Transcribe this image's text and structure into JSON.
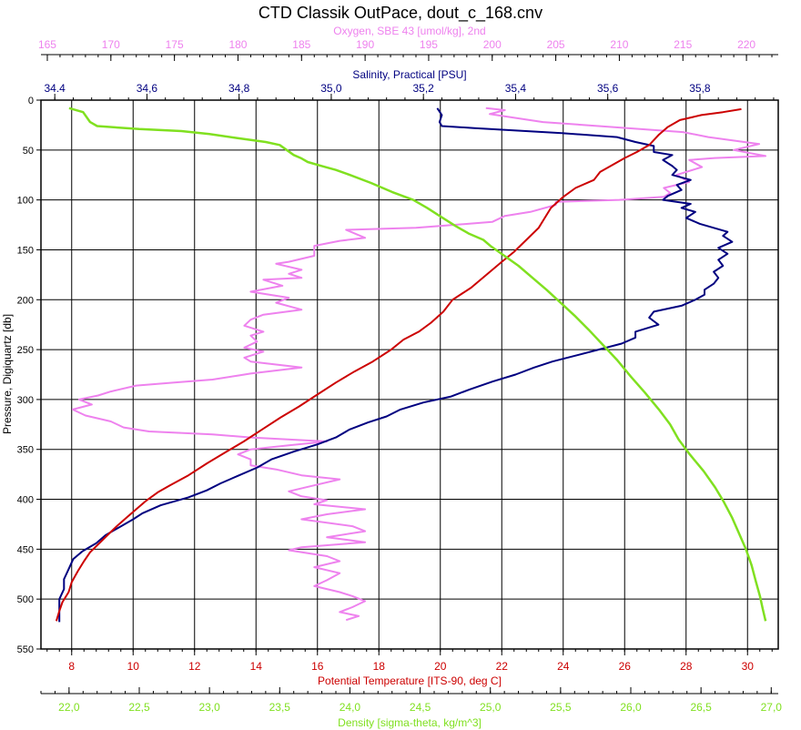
{
  "chart_data": {
    "type": "line",
    "title": "CTD Classik OutPace, dout_c_168.cnv",
    "ylabel": "Pressure, Digiquartz [db]",
    "ylim": [
      0,
      550
    ],
    "y_ticks": [
      0,
      50,
      100,
      150,
      200,
      250,
      300,
      350,
      400,
      450,
      500,
      550
    ],
    "y_inverted": true,
    "grid": true,
    "axes": {
      "oxygen": {
        "label": "Oxygen, SBE 43 [umol/kg], 2nd",
        "color": "#ee82ee",
        "range": [
          164.5,
          222.5
        ],
        "ticks": [
          165,
          170,
          175,
          180,
          185,
          190,
          195,
          200,
          205,
          210,
          215,
          220
        ]
      },
      "salinity": {
        "label": "Salinity, Practical [PSU]",
        "color": "#000080",
        "range": [
          34.37,
          35.97
        ],
        "ticks": [
          34.4,
          34.6,
          34.8,
          35.0,
          35.2,
          35.4,
          35.6,
          35.8
        ],
        "tick_labels": [
          "34.4",
          "34,6",
          "34,8",
          "35,0",
          "35,2",
          "35,4",
          "35,6",
          "35,8"
        ]
      },
      "temperature": {
        "label": "Potential Temperature [ITS-90, deg C]",
        "color": "#cc0000",
        "range": [
          7,
          31
        ],
        "ticks": [
          8,
          10,
          12,
          14,
          16,
          18,
          20,
          22,
          24,
          26,
          28,
          30
        ]
      },
      "density": {
        "label": "Density [sigma-theta, kg/m^3]",
        "color": "#80e020",
        "range": [
          21.8,
          27.05
        ],
        "ticks": [
          22.0,
          22.5,
          23.0,
          23.5,
          24.0,
          24.5,
          25.0,
          25.5,
          26.0,
          26.5,
          27.0
        ],
        "tick_labels": [
          "22,0",
          "22,5",
          "23,0",
          "23,5",
          "24,0",
          "24,5",
          "25,0",
          "25,5",
          "26,0",
          "26,5",
          "27,0"
        ]
      }
    },
    "series": [
      {
        "axis": "oxygen",
        "color": "#ee82ee",
        "points": [
          [
            199.5,
            8
          ],
          [
            201,
            10
          ],
          [
            199.8,
            14
          ],
          [
            204,
            22
          ],
          [
            215,
            32
          ],
          [
            217,
            37
          ],
          [
            221,
            44
          ],
          [
            219,
            50
          ],
          [
            221.5,
            56
          ],
          [
            217.5,
            58
          ],
          [
            215.5,
            60
          ],
          [
            216.5,
            67
          ],
          [
            214.5,
            75
          ],
          [
            215.5,
            82
          ],
          [
            213.5,
            88
          ],
          [
            214,
            93
          ],
          [
            213.5,
            97
          ],
          [
            210,
            100
          ],
          [
            205,
            102
          ],
          [
            205,
            105
          ],
          [
            203,
            112
          ],
          [
            201,
            116
          ],
          [
            200,
            122
          ],
          [
            196,
            126
          ],
          [
            194,
            128
          ],
          [
            188.5,
            130
          ],
          [
            190,
            138
          ],
          [
            188,
            141
          ],
          [
            186,
            146
          ],
          [
            186,
            156
          ],
          [
            184,
            162
          ],
          [
            183,
            164
          ],
          [
            185,
            170
          ],
          [
            184,
            174
          ],
          [
            185,
            178
          ],
          [
            182,
            180
          ],
          [
            183.5,
            186
          ],
          [
            181,
            192
          ],
          [
            184,
            198
          ],
          [
            183,
            203
          ],
          [
            185,
            210
          ],
          [
            182,
            215
          ],
          [
            181,
            220
          ],
          [
            180.5,
            226
          ],
          [
            182,
            232
          ],
          [
            181,
            236
          ],
          [
            181.5,
            242
          ],
          [
            180.5,
            248
          ],
          [
            182,
            252
          ],
          [
            180.5,
            258
          ],
          [
            181,
            262
          ],
          [
            185,
            268
          ],
          [
            181,
            274
          ],
          [
            180,
            276
          ],
          [
            178,
            280
          ],
          [
            175,
            283
          ],
          [
            172,
            286
          ],
          [
            170,
            292
          ],
          [
            169,
            296
          ],
          [
            167.5,
            300
          ],
          [
            168.5,
            305
          ],
          [
            167,
            310
          ],
          [
            168,
            316
          ],
          [
            170,
            322
          ],
          [
            171,
            328
          ],
          [
            173,
            332
          ],
          [
            178,
            335
          ],
          [
            181,
            338
          ],
          [
            187,
            342
          ],
          [
            184,
            346
          ],
          [
            181,
            350
          ],
          [
            180,
            355
          ],
          [
            181,
            360
          ],
          [
            181,
            366
          ],
          [
            183,
            370
          ],
          [
            185,
            376
          ],
          [
            188,
            380
          ],
          [
            186,
            386
          ],
          [
            184,
            392
          ],
          [
            185,
            397
          ],
          [
            187,
            401
          ],
          [
            186,
            405
          ],
          [
            190,
            410
          ],
          [
            187,
            415
          ],
          [
            185,
            420
          ],
          [
            189,
            427
          ],
          [
            190,
            432
          ],
          [
            187,
            438
          ],
          [
            190,
            443
          ],
          [
            185,
            448
          ],
          [
            184,
            451
          ],
          [
            187,
            457
          ],
          [
            188,
            462
          ],
          [
            186,
            468
          ],
          [
            188,
            474
          ],
          [
            187,
            481
          ],
          [
            186,
            487
          ],
          [
            188,
            493
          ],
          [
            189,
            497
          ],
          [
            190,
            502
          ],
          [
            189,
            508
          ],
          [
            188,
            513
          ],
          [
            189.5,
            517
          ],
          [
            188.5,
            521
          ]
        ]
      },
      {
        "axis": "salinity",
        "color": "#000080",
        "points": [
          [
            35.23,
            8
          ],
          [
            35.24,
            15
          ],
          [
            35.235,
            22
          ],
          [
            35.24,
            26
          ],
          [
            35.31,
            28
          ],
          [
            35.5,
            33
          ],
          [
            35.62,
            37
          ],
          [
            35.66,
            42
          ],
          [
            35.7,
            46
          ],
          [
            35.7,
            52
          ],
          [
            35.74,
            55
          ],
          [
            35.72,
            60
          ],
          [
            35.74,
            66
          ],
          [
            35.75,
            70
          ],
          [
            35.74,
            75
          ],
          [
            35.78,
            80
          ],
          [
            35.75,
            85
          ],
          [
            35.76,
            90
          ],
          [
            35.73,
            96
          ],
          [
            35.72,
            100
          ],
          [
            35.78,
            104
          ],
          [
            35.76,
            108
          ],
          [
            35.79,
            112
          ],
          [
            35.77,
            118
          ],
          [
            35.8,
            124
          ],
          [
            35.83,
            128
          ],
          [
            35.86,
            132
          ],
          [
            35.85,
            136
          ],
          [
            35.87,
            142
          ],
          [
            35.84,
            148
          ],
          [
            35.86,
            154
          ],
          [
            35.84,
            160
          ],
          [
            35.85,
            166
          ],
          [
            35.83,
            172
          ],
          [
            35.84,
            178
          ],
          [
            35.83,
            184
          ],
          [
            35.81,
            190
          ],
          [
            35.81,
            195
          ],
          [
            35.79,
            200
          ],
          [
            35.76,
            206
          ],
          [
            35.7,
            212
          ],
          [
            35.69,
            218
          ],
          [
            35.71,
            225
          ],
          [
            35.66,
            232
          ],
          [
            35.66,
            238
          ],
          [
            35.63,
            244
          ],
          [
            35.58,
            250
          ],
          [
            35.53,
            256
          ],
          [
            35.48,
            262
          ],
          [
            35.44,
            268
          ],
          [
            35.4,
            275
          ],
          [
            35.35,
            282
          ],
          [
            35.3,
            290
          ],
          [
            35.26,
            297
          ],
          [
            35.2,
            303
          ],
          [
            35.15,
            310
          ],
          [
            35.12,
            317
          ],
          [
            35.08,
            323
          ],
          [
            35.04,
            330
          ],
          [
            35.01,
            338
          ],
          [
            34.97,
            345
          ],
          [
            34.92,
            352
          ],
          [
            34.87,
            360
          ],
          [
            34.84,
            368
          ],
          [
            34.8,
            376
          ],
          [
            34.76,
            384
          ],
          [
            34.73,
            391
          ],
          [
            34.69,
            398
          ],
          [
            34.63,
            406
          ],
          [
            34.59,
            414
          ],
          [
            34.57,
            420
          ],
          [
            34.54,
            428
          ],
          [
            34.51,
            436
          ],
          [
            34.49,
            444
          ],
          [
            34.46,
            452
          ],
          [
            34.44,
            460
          ],
          [
            34.43,
            470
          ],
          [
            34.42,
            480
          ],
          [
            34.42,
            490
          ],
          [
            34.41,
            500
          ],
          [
            34.41,
            510
          ],
          [
            34.41,
            518
          ],
          [
            34.41,
            523
          ]
        ]
      },
      {
        "axis": "temperature",
        "color": "#cc0000",
        "points": [
          [
            29.8,
            9
          ],
          [
            29.2,
            12
          ],
          [
            28.5,
            15
          ],
          [
            27.8,
            20
          ],
          [
            27.4,
            27
          ],
          [
            27.1,
            35
          ],
          [
            26.8,
            45
          ],
          [
            26.4,
            52
          ],
          [
            26,
            58
          ],
          [
            25.6,
            65
          ],
          [
            25.2,
            72
          ],
          [
            25,
            80
          ],
          [
            24.4,
            88
          ],
          [
            24,
            97
          ],
          [
            23.6,
            108
          ],
          [
            23.4,
            118
          ],
          [
            23.2,
            128
          ],
          [
            22.8,
            140
          ],
          [
            22.4,
            152
          ],
          [
            22,
            162
          ],
          [
            21.5,
            175
          ],
          [
            21,
            188
          ],
          [
            20.4,
            200
          ],
          [
            20.1,
            212
          ],
          [
            19.7,
            223
          ],
          [
            19.3,
            232
          ],
          [
            18.8,
            240
          ],
          [
            18.4,
            250
          ],
          [
            17.8,
            262
          ],
          [
            17.2,
            272
          ],
          [
            16.6,
            283
          ],
          [
            16,
            295
          ],
          [
            15.4,
            307
          ],
          [
            14.8,
            318
          ],
          [
            14.2,
            330
          ],
          [
            13.6,
            342
          ],
          [
            13,
            353
          ],
          [
            12.4,
            364
          ],
          [
            11.8,
            376
          ],
          [
            11.2,
            386
          ],
          [
            10.8,
            393
          ],
          [
            10.4,
            402
          ],
          [
            10.1,
            410
          ],
          [
            9.8,
            418
          ],
          [
            9.5,
            426
          ],
          [
            9.2,
            435
          ],
          [
            8.9,
            444
          ],
          [
            8.6,
            453
          ],
          [
            8.4,
            462
          ],
          [
            8.2,
            472
          ],
          [
            8,
            483
          ],
          [
            7.9,
            493
          ],
          [
            7.7,
            503
          ],
          [
            7.6,
            512
          ],
          [
            7.5,
            522
          ]
        ]
      },
      {
        "axis": "density",
        "color": "#80e020",
        "points": [
          [
            22.0,
            8
          ],
          [
            22.1,
            12
          ],
          [
            22.15,
            22
          ],
          [
            22.2,
            26
          ],
          [
            22.5,
            29
          ],
          [
            22.8,
            31
          ],
          [
            23.0,
            34
          ],
          [
            23.2,
            38
          ],
          [
            23.4,
            42
          ],
          [
            23.5,
            45
          ],
          [
            23.55,
            50
          ],
          [
            23.6,
            55
          ],
          [
            23.65,
            58
          ],
          [
            23.7,
            62
          ],
          [
            23.8,
            66
          ],
          [
            23.9,
            70
          ],
          [
            24.0,
            75
          ],
          [
            24.15,
            83
          ],
          [
            24.3,
            92
          ],
          [
            24.45,
            100
          ],
          [
            24.55,
            108
          ],
          [
            24.65,
            117
          ],
          [
            24.75,
            126
          ],
          [
            24.85,
            134
          ],
          [
            24.95,
            140
          ],
          [
            25.0,
            146
          ],
          [
            25.1,
            156
          ],
          [
            25.2,
            166
          ],
          [
            25.3,
            178
          ],
          [
            25.4,
            190
          ],
          [
            25.5,
            203
          ],
          [
            25.6,
            216
          ],
          [
            25.7,
            230
          ],
          [
            25.8,
            245
          ],
          [
            25.9,
            260
          ],
          [
            26.0,
            277
          ],
          [
            26.1,
            293
          ],
          [
            26.2,
            310
          ],
          [
            26.28,
            325
          ],
          [
            26.34,
            340
          ],
          [
            26.42,
            355
          ],
          [
            26.52,
            372
          ],
          [
            26.6,
            388
          ],
          [
            26.66,
            402
          ],
          [
            26.72,
            418
          ],
          [
            26.77,
            434
          ],
          [
            26.82,
            450
          ],
          [
            26.86,
            466
          ],
          [
            26.89,
            482
          ],
          [
            26.92,
            497
          ],
          [
            26.94,
            510
          ],
          [
            26.96,
            522
          ]
        ]
      }
    ]
  }
}
